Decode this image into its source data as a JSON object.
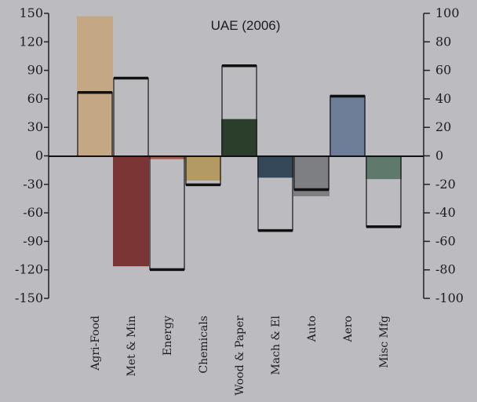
{
  "chart_data": {
    "type": "bar",
    "title": "UAE (2006)",
    "categories": [
      "Agri-Food",
      "Met & Min",
      "Energy",
      "Chemicals",
      "Wood & Paper",
      "Mach & El",
      "Auto",
      "Aero",
      "Misc Mfg"
    ],
    "series": [
      {
        "axis": "left",
        "style": "outlined",
        "values": [
          67,
          82,
          -119,
          -30,
          95,
          -78,
          -35,
          63,
          -74
        ]
      },
      {
        "axis": "right",
        "style": "filled",
        "values": [
          98,
          -77,
          -2,
          -17,
          26,
          -15,
          -28,
          43,
          -16
        ]
      }
    ],
    "colors": [
      "#c4a884",
      "#7a3534",
      "#a05a4c",
      "#b39a62",
      "#2b3e2c",
      "#34485a",
      "#7d7f83",
      "#6e7d98",
      "#5f7a6c"
    ],
    "left_axis": {
      "ylim": [
        -150,
        150
      ],
      "ticks": [
        "150",
        "120",
        "90",
        "60",
        "30",
        "0",
        "-30",
        "-60",
        "-90",
        "-120",
        "-150"
      ]
    },
    "right_axis": {
      "ylim": [
        -100,
        100
      ],
      "ticks": [
        "100",
        "80",
        "60",
        "40",
        "20",
        "0",
        "-20",
        "-40",
        "-60",
        "-80",
        "-100"
      ]
    },
    "grid": false,
    "legend": "none"
  }
}
